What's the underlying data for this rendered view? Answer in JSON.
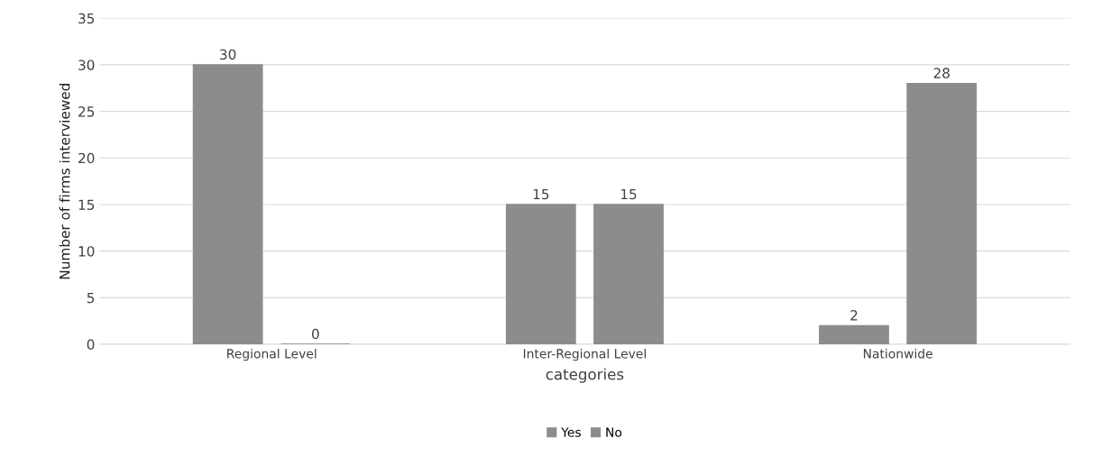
{
  "chart_data": {
    "type": "bar",
    "xlabel": "categories",
    "ylabel": "Number of firms interviewed",
    "categories": [
      "Regional Level",
      "Inter-Regional Level",
      "Nationwide"
    ],
    "series": [
      {
        "name": "Yes",
        "color": "#8c8c8c",
        "values": [
          30,
          15,
          2
        ]
      },
      {
        "name": "No",
        "color": "#8c8c8c",
        "values": [
          0,
          15,
          28
        ]
      }
    ],
    "ylim": [
      0,
      35
    ],
    "yticks": [
      0,
      5,
      10,
      15,
      20,
      25,
      30,
      35
    ],
    "grid": "y",
    "legend": "bottom",
    "data_labels": true
  }
}
